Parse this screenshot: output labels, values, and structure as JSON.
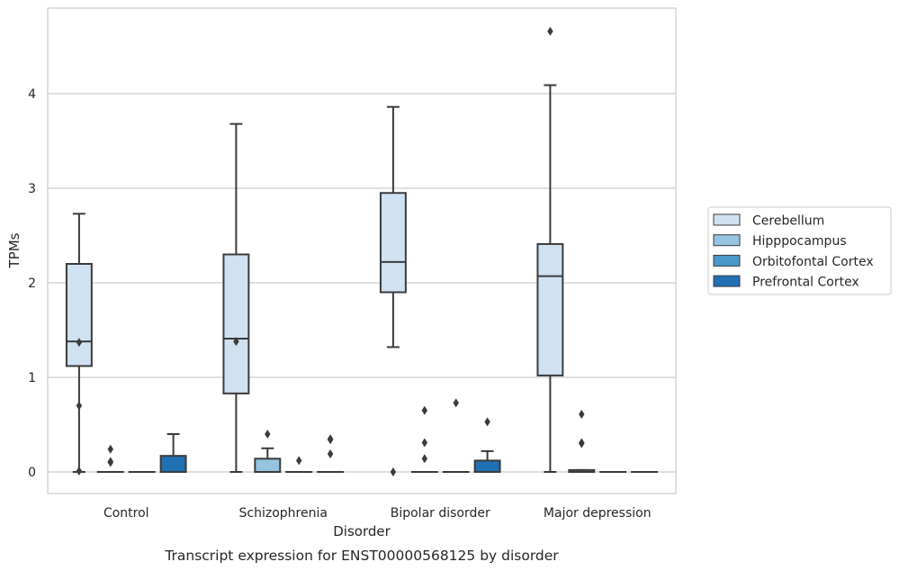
{
  "chart_data": {
    "type": "box",
    "title": "",
    "caption": "Transcript expression for ENST00000568125 by disorder",
    "xlabel": "Disorder",
    "ylabel": "TPMs",
    "ylim": [
      -0.22,
      4.9
    ],
    "yticks": [
      "0",
      "1",
      "2",
      "3",
      "4"
    ],
    "grid": "horizontal",
    "legend_position": "right",
    "categories": [
      "Control",
      "Schizophrenia",
      "Bipolar disorder",
      "Major depression"
    ],
    "series": [
      {
        "name": "Cerebellum",
        "color": "#d0e1f2",
        "boxes": [
          {
            "min": 0.0,
            "q1": 1.12,
            "median": 1.38,
            "q3": 2.2,
            "max": 2.73,
            "outliers": [
              1.37,
              0.7,
              0.01
            ]
          },
          {
            "min": 0.0,
            "q1": 0.83,
            "median": 1.41,
            "q3": 2.3,
            "max": 3.68,
            "outliers": [
              1.38
            ]
          },
          {
            "min": 1.32,
            "q1": 1.9,
            "median": 2.22,
            "q3": 2.95,
            "max": 3.86,
            "outliers": [
              0.0
            ]
          },
          {
            "min": 0.0,
            "q1": 1.02,
            "median": 2.07,
            "q3": 2.41,
            "max": 4.09,
            "outliers": [
              4.66
            ]
          }
        ]
      },
      {
        "name": "Hipppocampus",
        "color": "#94c4df",
        "boxes": [
          {
            "min": 0.0,
            "q1": 0.0,
            "median": 0.0,
            "q3": 0.0,
            "max": 0.0,
            "outliers": [
              0.24,
              0.1,
              0.11
            ]
          },
          {
            "min": 0.0,
            "q1": 0.0,
            "median": 0.0,
            "q3": 0.14,
            "max": 0.25,
            "outliers": [
              0.4
            ]
          },
          {
            "min": 0.0,
            "q1": 0.0,
            "median": 0.0,
            "q3": 0.0,
            "max": 0.0,
            "outliers": [
              0.65,
              0.31,
              0.14
            ]
          },
          {
            "min": 0.0,
            "q1": 0.0,
            "median": 0.0,
            "q3": 0.02,
            "max": 0.02,
            "outliers": [
              0.61,
              0.3,
              0.31
            ]
          }
        ]
      },
      {
        "name": "Orbitofontal Cortex",
        "color": "#4a98c9",
        "boxes": [
          {
            "min": 0.0,
            "q1": 0.0,
            "median": 0.0,
            "q3": 0.0,
            "max": 0.0,
            "outliers": []
          },
          {
            "min": 0.0,
            "q1": 0.0,
            "median": 0.0,
            "q3": 0.0,
            "max": 0.0,
            "outliers": [
              0.12
            ]
          },
          {
            "min": 0.0,
            "q1": 0.0,
            "median": 0.0,
            "q3": 0.0,
            "max": 0.0,
            "outliers": [
              0.73
            ]
          },
          {
            "min": 0.0,
            "q1": 0.0,
            "median": 0.0,
            "q3": 0.0,
            "max": 0.0,
            "outliers": []
          }
        ]
      },
      {
        "name": "Prefrontal Cortex",
        "color": "#2070b4",
        "boxes": [
          {
            "min": 0.0,
            "q1": 0.0,
            "median": 0.0,
            "q3": 0.17,
            "max": 0.4,
            "outliers": []
          },
          {
            "min": 0.0,
            "q1": 0.0,
            "median": 0.0,
            "q3": 0.0,
            "max": 0.0,
            "outliers": [
              0.35,
              0.34,
              0.19
            ]
          },
          {
            "min": 0.0,
            "q1": 0.0,
            "median": 0.0,
            "q3": 0.12,
            "max": 0.22,
            "outliers": [
              0.53
            ]
          },
          {
            "min": 0.0,
            "q1": 0.0,
            "median": 0.0,
            "q3": 0.0,
            "max": 0.0,
            "outliers": []
          }
        ]
      }
    ]
  }
}
